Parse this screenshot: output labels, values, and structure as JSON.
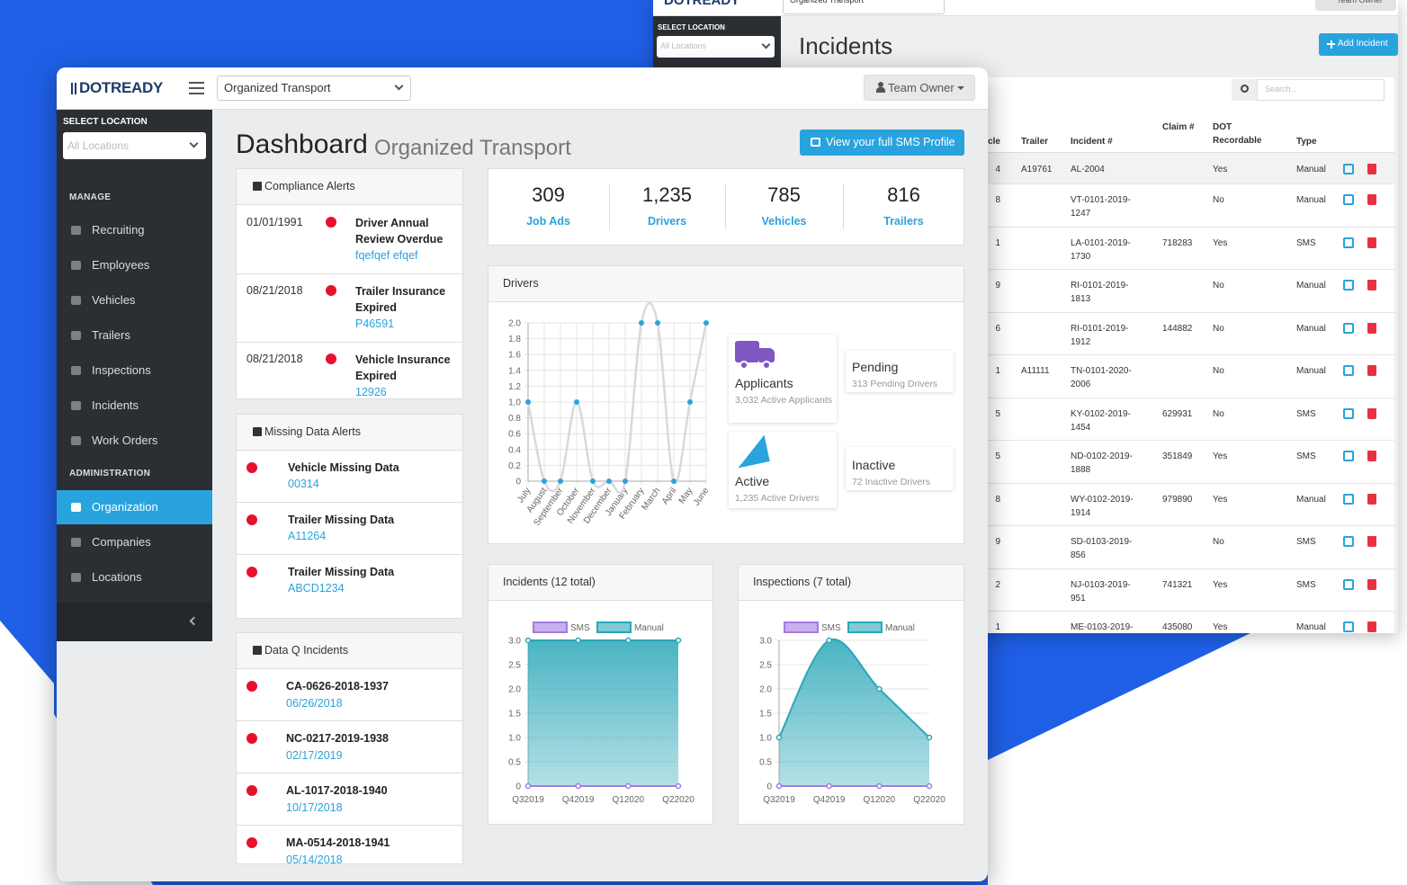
{
  "incidents_page": {
    "logo": "DOTREADY",
    "organization": "Organized Transport",
    "user": "Team Owner",
    "location_label": "SELECT LOCATION",
    "location_placeholder": "All Locations",
    "title": "Incidents",
    "add_button": "Add Incident",
    "search_placeholder": "Search...",
    "table": {
      "columns": [
        "cle",
        "Trailer",
        "Incident #",
        "Claim #",
        "DOT Recordable",
        "Type"
      ],
      "rows": [
        [
          "4",
          "A19761",
          "AL-2004",
          null,
          "Yes",
          "Manual"
        ],
        [
          "8",
          null,
          "VT-0101-2019-1247",
          null,
          "No",
          "Manual"
        ],
        [
          "1",
          null,
          "LA-0101-2019-1730",
          "718283",
          "Yes",
          "SMS"
        ],
        [
          "9",
          null,
          "RI-0101-2019-1813",
          null,
          "No",
          "Manual"
        ],
        [
          "6",
          null,
          "RI-0101-2019-1912",
          "144882",
          "No",
          "Manual"
        ],
        [
          "1",
          "A11111",
          "TN-0101-2020-2006",
          null,
          "No",
          "Manual"
        ],
        [
          "5",
          null,
          "KY-0102-2019-1454",
          "629931",
          "No",
          "SMS"
        ],
        [
          "5",
          null,
          "ND-0102-2019-1888",
          "351849",
          "Yes",
          "SMS"
        ],
        [
          "8",
          null,
          "WY-0102-2019-1914",
          "979890",
          "Yes",
          "Manual"
        ],
        [
          "9",
          null,
          "SD-0103-2019-856",
          null,
          "No",
          "SMS"
        ],
        [
          "2",
          null,
          "NJ-0103-2019-951",
          "741321",
          "Yes",
          "SMS"
        ],
        [
          "1",
          null,
          "ME-0103-2019-",
          "435080",
          "Yes",
          "Manual"
        ]
      ]
    }
  },
  "dashboard": {
    "logo": "DOTREADY",
    "organization": "Organized Transport",
    "user": "Team Owner",
    "sidebar": {
      "location_label": "SELECT LOCATION",
      "location_placeholder": "All Locations",
      "manage_label": "MANAGE",
      "manage_items": [
        "Recruiting",
        "Employees",
        "Vehicles",
        "Trailers",
        "Inspections",
        "Incidents",
        "Work Orders"
      ],
      "admin_label": "ADMINISTRATION",
      "admin_items": [
        "Organization",
        "Companies",
        "Locations"
      ]
    },
    "title": "Dashboard",
    "subtitle": "Organized Transport",
    "sms_button": "View your full SMS Profile",
    "compliance_alerts": {
      "title": "Compliance Alerts",
      "items": [
        {
          "date": "01/01/1991",
          "title": "Driver Annual Review Overdue",
          "link": "fqefqef efqef"
        },
        {
          "date": "08/21/2018",
          "title": "Trailer Insurance Expired",
          "link": "P46591"
        },
        {
          "date": "08/21/2018",
          "title": "Vehicle Insurance Expired",
          "link": "12926"
        }
      ]
    },
    "missing_data_alerts": {
      "title": "Missing Data Alerts",
      "items": [
        {
          "title": "Vehicle Missing Data",
          "link": "00314"
        },
        {
          "title": "Trailer Missing Data",
          "link": "A11264"
        },
        {
          "title": "Trailer Missing Data",
          "link": "ABCD1234"
        }
      ]
    },
    "dataq_incidents": {
      "title": "Data Q Incidents",
      "items": [
        {
          "title": "CA-0626-2018-1937",
          "date": "06/26/2018"
        },
        {
          "title": "NC-0217-2019-1938",
          "date": "02/17/2019"
        },
        {
          "title": "AL-1017-2018-1940",
          "date": "10/17/2018"
        },
        {
          "title": "MA-0514-2018-1941",
          "date": "05/14/2018"
        }
      ]
    },
    "stats": [
      {
        "value": "309",
        "label": "Job Ads"
      },
      {
        "value": "1,235",
        "label": "Drivers"
      },
      {
        "value": "785",
        "label": "Vehicles"
      },
      {
        "value": "816",
        "label": "Trailers"
      }
    ],
    "drivers_chart": {
      "type": "line",
      "title": "Drivers",
      "categories": [
        "July",
        "August",
        "September",
        "October",
        "November",
        "December",
        "January",
        "February",
        "March",
        "April",
        "May",
        "June"
      ],
      "values": [
        1,
        0,
        0,
        1,
        0,
        0,
        0,
        2,
        2,
        0,
        1,
        2
      ],
      "color": "#29a3dd",
      "line_color": "#d9d9d9",
      "ylim": [
        0,
        2
      ],
      "yticks": [
        0,
        0.2,
        0.4,
        0.6,
        0.8,
        {
          "value": 1,
          "label": "1.0"
        },
        1.2,
        1.4,
        1.6,
        1.8,
        {
          "value": 2,
          "label": "2.0"
        }
      ],
      "grid": true
    },
    "driver_cards": [
      {
        "title": "Applicants",
        "subtitle": "3,032 Active Applicants"
      },
      {
        "title": "Pending",
        "subtitle": "313 Pending Drivers"
      },
      {
        "title": "Active",
        "subtitle": "1,235 Active Drivers"
      },
      {
        "title": "Inactive",
        "subtitle": "72 Inactive Drivers"
      }
    ],
    "incidents_chart": {
      "type": "area",
      "title": "Incidents (12 total)",
      "categories": [
        "Q32019",
        "Q42019",
        "Q12020",
        "Q22020"
      ],
      "series": [
        {
          "name": "SMS",
          "color": "#a47ae2",
          "values": [
            0,
            0,
            0,
            0
          ]
        },
        {
          "name": "Manual",
          "color": "#2aa7b8",
          "values": [
            3,
            3,
            3,
            3
          ]
        }
      ],
      "ylim": [
        0,
        3
      ],
      "yticks": [
        0,
        0.5,
        {
          "value": 1,
          "label": "1.0"
        },
        1.5,
        {
          "value": 2,
          "label": "2.0"
        },
        2.5,
        {
          "value": 3,
          "label": "3.0"
        }
      ],
      "grid": true
    },
    "inspections_chart": {
      "type": "area",
      "title": "Inspections (7 total)",
      "categories": [
        "Q32019",
        "Q42019",
        "Q12020",
        "Q22020"
      ],
      "series": [
        {
          "name": "SMS",
          "color": "#a47ae2",
          "values": [
            0,
            0,
            0,
            0
          ]
        },
        {
          "name": "Manual",
          "color": "#2aa7b8",
          "values": [
            1,
            3,
            2,
            1
          ]
        }
      ],
      "ylim": [
        0,
        3
      ],
      "yticks": [
        0,
        0.5,
        {
          "value": 1,
          "label": "1.0"
        },
        1.5,
        {
          "value": 2,
          "label": "2.0"
        },
        2.5,
        {
          "value": 3,
          "label": "3.0"
        }
      ],
      "grid": true
    }
  }
}
